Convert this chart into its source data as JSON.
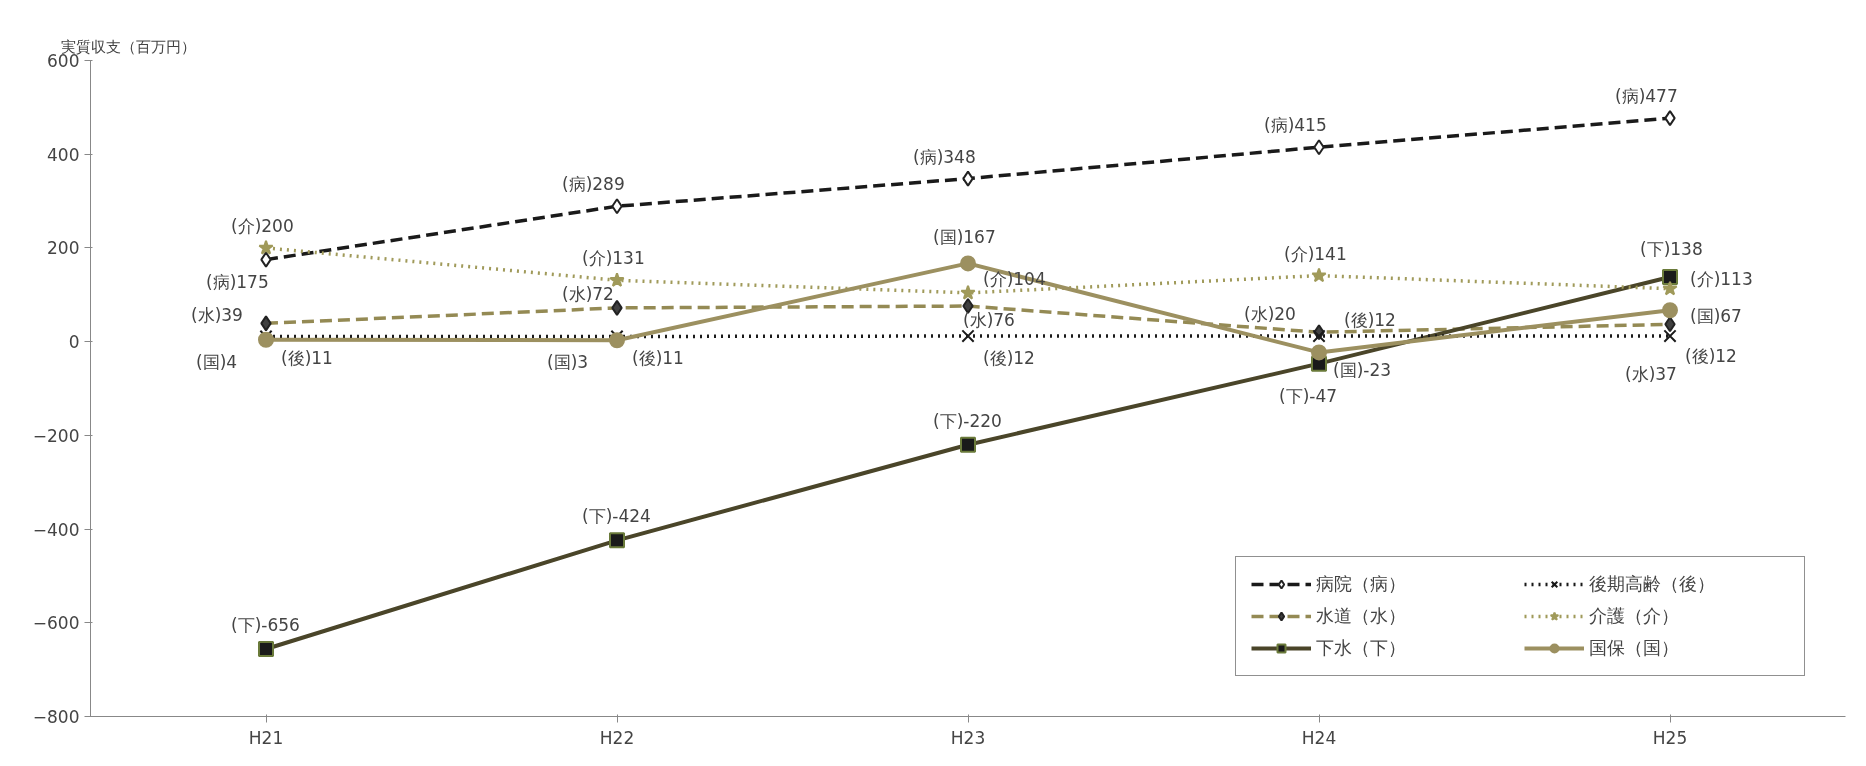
{
  "chart_data": {
    "type": "line",
    "ylabel": "実質収支（百万円）",
    "categories": [
      "H21",
      "H22",
      "H23",
      "H24",
      "H25"
    ],
    "ylim": [
      -800,
      600
    ],
    "yticks": [
      -800,
      -600,
      -400,
      -200,
      0,
      200,
      400,
      600
    ],
    "grid": false,
    "legend": "bottom right",
    "series": [
      {
        "name": "病院（病）",
        "color": "#1a1a1a",
        "marker": "diamond",
        "line_style": "dashed",
        "values": [
          175,
          289,
          348,
          415,
          477
        ],
        "value_labels": [
          "(病)175",
          "(病)289",
          "(病)348",
          "(病)415",
          "(病)477"
        ]
      },
      {
        "name": "水道（水）",
        "color": "#948a54",
        "marker": "diamond",
        "line_style": "dashed",
        "values": [
          39,
          72,
          76,
          20,
          37
        ],
        "value_labels": [
          "(水)39",
          "(水)72",
          "(水)76",
          "(水)20",
          "(水)37"
        ]
      },
      {
        "name": "下水（下）",
        "color": "#4a4529",
        "marker": "square",
        "line_style": "solid",
        "values": [
          -656,
          -424,
          -220,
          -47,
          138
        ],
        "value_labels": [
          "(下)-656",
          "(下)-424",
          "(下)-220",
          "(下)-47",
          "(下)138"
        ]
      },
      {
        "name": "後期高齢（後）",
        "color": "#1a1a1a",
        "marker": "cross",
        "line_style": "dotted",
        "values": [
          11,
          11,
          12,
          12,
          12
        ],
        "value_labels": [
          "(後)11",
          "(後)11",
          "(後)12",
          "(後)12",
          "(後)12"
        ]
      },
      {
        "name": "介護（介）",
        "color": "#a09a5a",
        "marker": "star",
        "line_style": "dotted",
        "values": [
          200,
          131,
          104,
          141,
          113
        ],
        "value_labels": [
          "(介)200",
          "(介)131",
          "(介)104",
          "(介)141",
          "(介)113"
        ]
      },
      {
        "name": "国保（国）",
        "color": "#9c9060",
        "marker": "circle",
        "line_style": "solid",
        "values": [
          4,
          3,
          167,
          -23,
          67
        ],
        "value_labels": [
          "(国)4",
          "(国)3",
          "(国)167",
          "(国)-23",
          "(国)67"
        ]
      }
    ]
  }
}
